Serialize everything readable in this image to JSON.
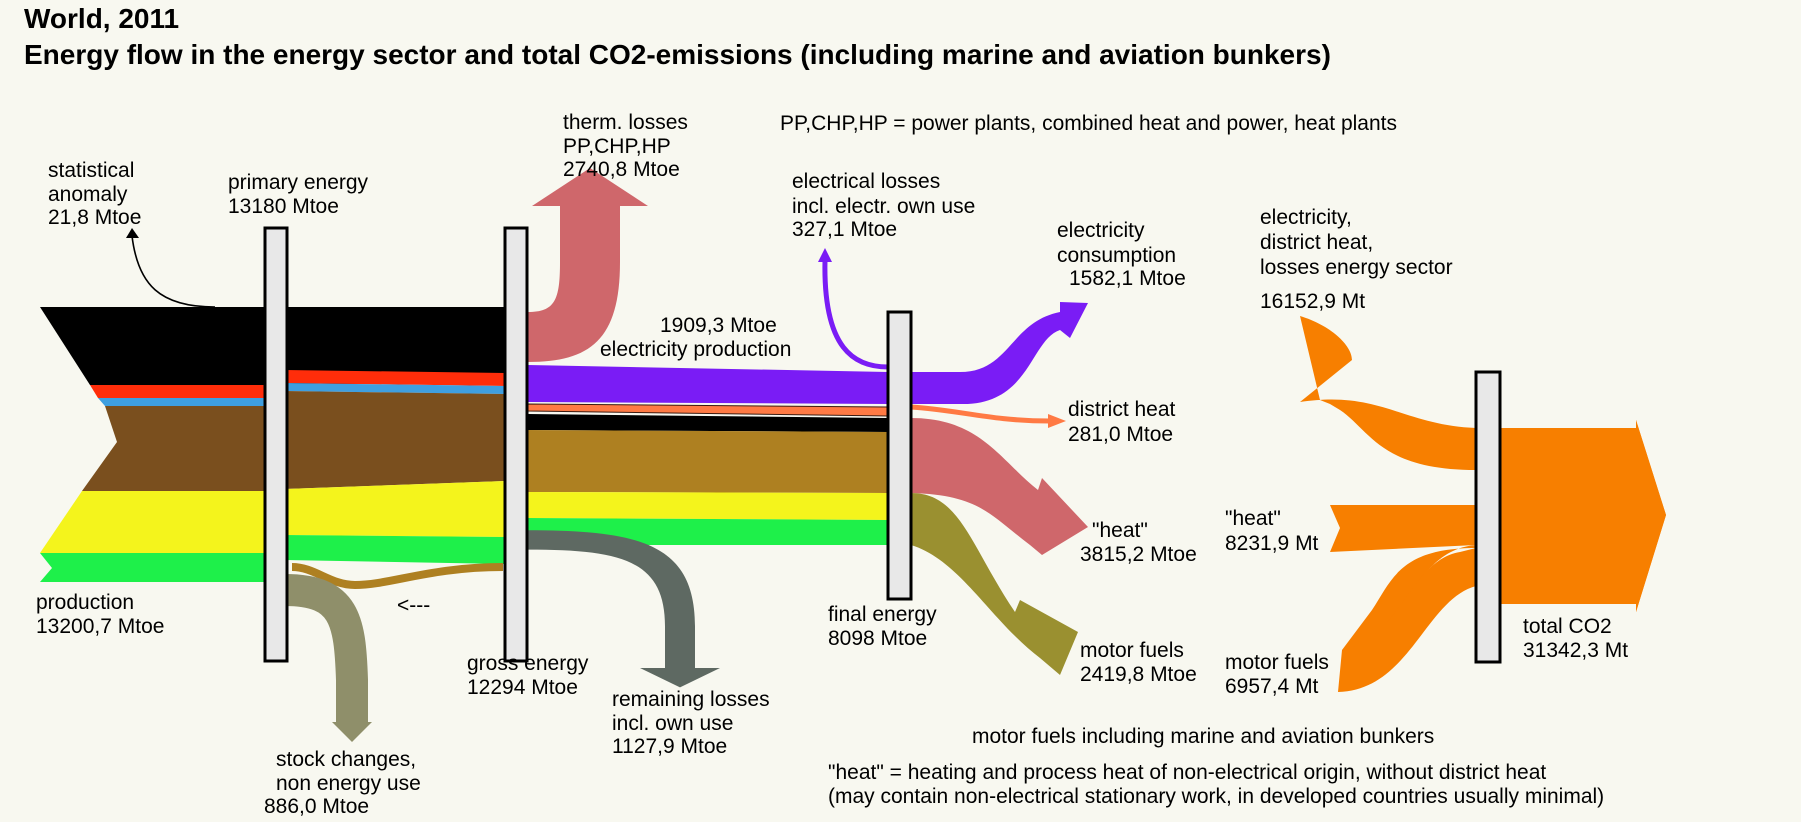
{
  "title": {
    "line1": "World, 2011",
    "line2": "Energy flow in the energy sector and total CO2-emissions (including marine and aviation bunkers)"
  },
  "legend_abbrev": "PP,CHP,HP  = power plants, combined heat and power, heat plants",
  "colors": {
    "background": "#f8f8f0",
    "coal": "#000000",
    "oil_red": "#ff2d0a",
    "gas_blue": "#3f9fe0",
    "crude_brown": "#7a4f1e",
    "products_ochre": "#ae8021",
    "renewables_yellow": "#f4f41c",
    "biomass_green": "#1ef04a",
    "electricity_purple": "#7a1cf5",
    "district_heat_orange": "#ff7a44",
    "heat_rose": "#cf676b",
    "motor_fuels_olive": "#9a9030",
    "losses_gray": "#5e6962",
    "stock_khaki": "#8f8f6a",
    "co2_orange": "#f77f00",
    "bar_fill": "#e8e8e8"
  },
  "nodes": {
    "production": {
      "label": "production",
      "value": "13200,7 Mtoe"
    },
    "statistical_anomaly": {
      "label1": "statistical",
      "label2": "anomaly",
      "value": "21,8 Mtoe"
    },
    "primary_energy": {
      "label": "primary energy",
      "value": "13180 Mtoe"
    },
    "stock_changes": {
      "label1": "stock changes,",
      "label2": "non energy use",
      "value": "886,0 Mtoe"
    },
    "back_arrow": "<---",
    "gross_energy": {
      "label": "gross energy",
      "value": "12294 Mtoe"
    },
    "therm_losses": {
      "label1": "therm. losses",
      "label2": "PP,CHP,HP",
      "value": "2740,8 Mtoe"
    },
    "remaining_losses": {
      "label1": "remaining losses",
      "label2": "incl. own use",
      "value": "1127,9 Mtoe"
    },
    "electricity_production": {
      "value": "1909,3 Mtoe",
      "label": "electricity production"
    },
    "electrical_losses": {
      "label1": "electrical losses",
      "label2": "incl. electr. own use",
      "value": "327,1 Mtoe"
    },
    "final_energy": {
      "label": "final energy",
      "value": "8098 Mtoe"
    },
    "electricity_consumption": {
      "label1": "electricity",
      "label2": "consumption",
      "value": "1582,1 Mtoe"
    },
    "district_heat": {
      "label": "district heat",
      "value": "281,0 Mtoe"
    },
    "heat": {
      "label": "\"heat\"",
      "value": "3815,2 Mtoe"
    },
    "motor_fuels": {
      "label": "motor fuels",
      "value": "2419,8 Mtoe"
    },
    "co2_electricity": {
      "label1": "electricity,",
      "label2": "district heat,",
      "label3": "losses energy sector",
      "value": "16152,9 Mt"
    },
    "co2_heat": {
      "label": "\"heat\"",
      "value": "8231,9 Mt"
    },
    "co2_motor_fuels": {
      "label": "motor fuels",
      "value": "6957,4 Mt"
    },
    "total_co2": {
      "label": "total CO2",
      "value": "31342,3 Mt"
    }
  },
  "notes": {
    "motor_fuels_note": "motor fuels including marine and aviation bunkers",
    "heat_note1": "\"heat\" = heating and process heat of non-electrical origin, without district heat",
    "heat_note2": "(may contain non-electrical stationary work, in developed countries usually minimal)"
  }
}
